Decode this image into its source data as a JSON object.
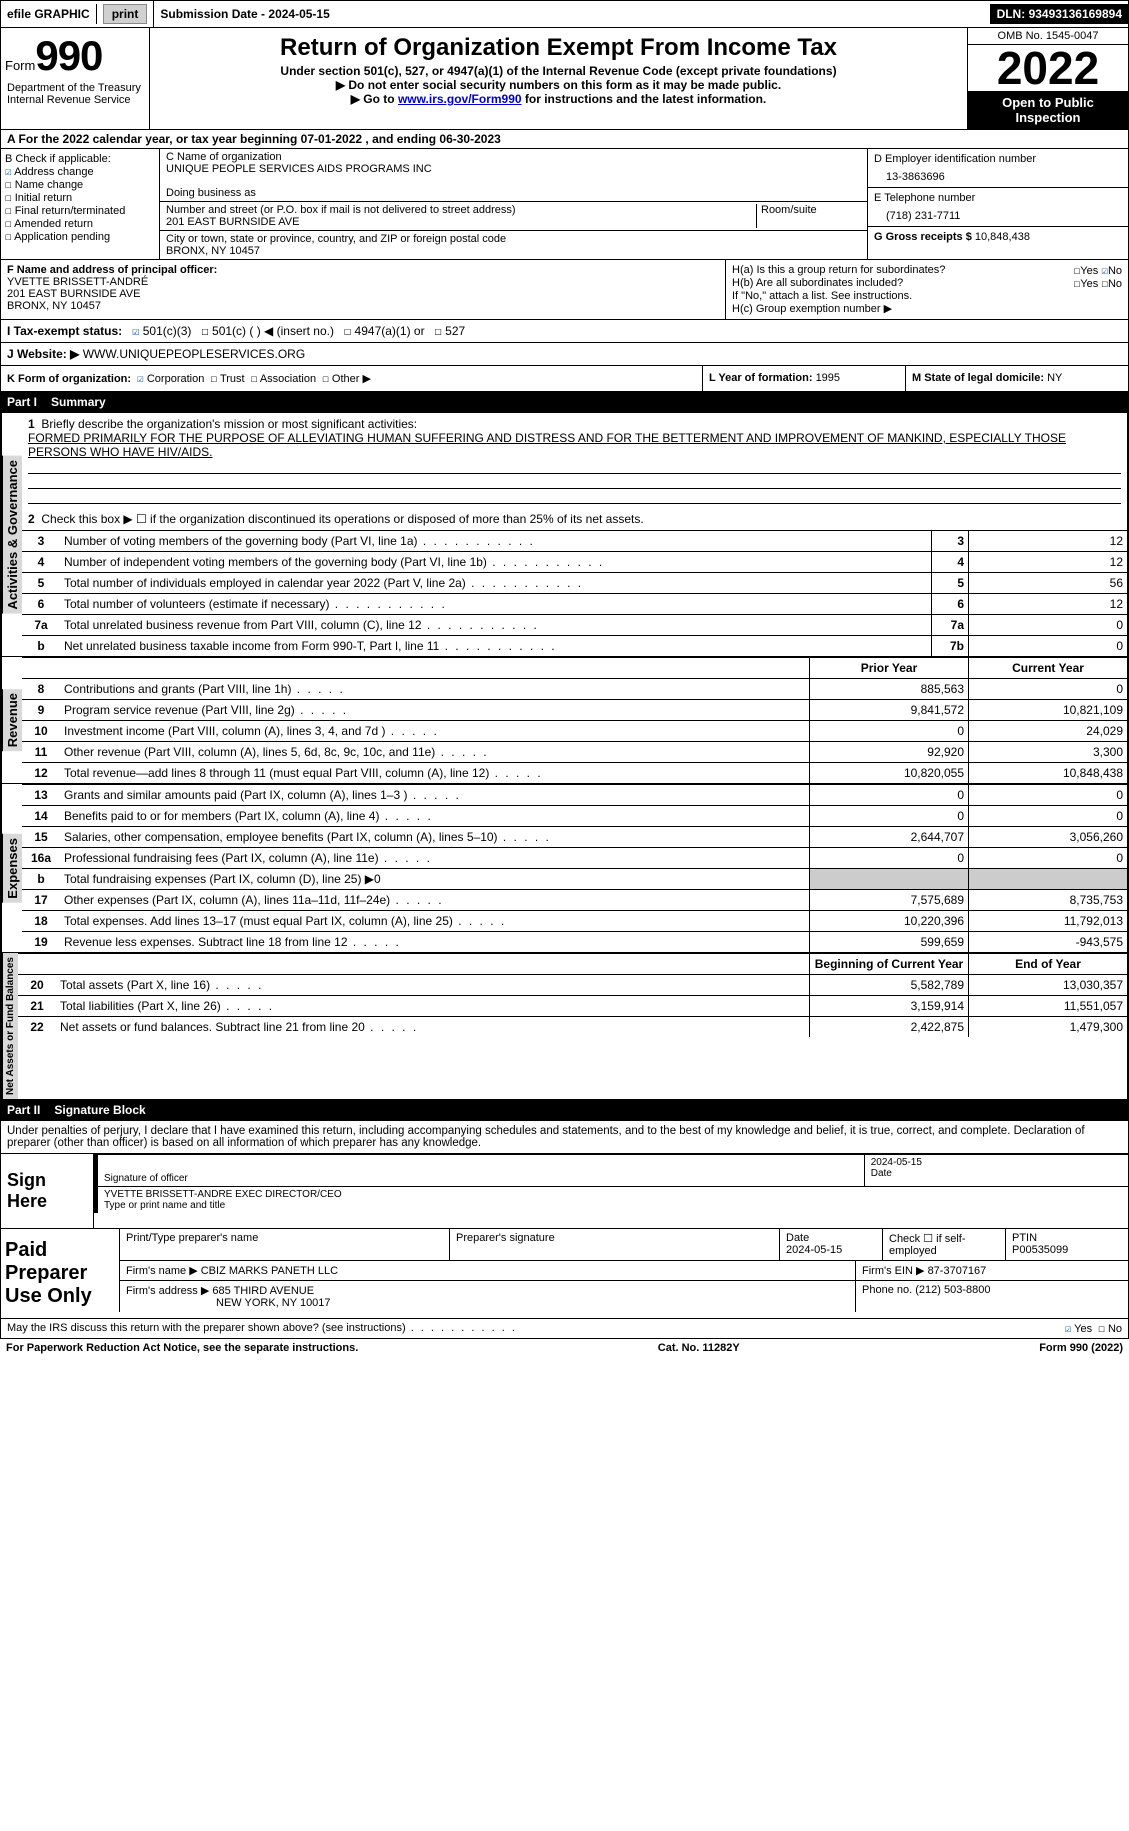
{
  "topbar": {
    "efile": "efile GRAPHIC",
    "print": "print",
    "sub_label": "Submission Date - ",
    "sub_date": "2024-05-15",
    "dln_label": "DLN: ",
    "dln": "93493136169894"
  },
  "header": {
    "form_word": "Form",
    "form_num": "990",
    "title": "Return of Organization Exempt From Income Tax",
    "subtitle1": "Under section 501(c), 527, or 4947(a)(1) of the Internal Revenue Code (except private foundations)",
    "subtitle2": "▶ Do not enter social security numbers on this form as it may be made public.",
    "subtitle3_pre": "▶ Go to ",
    "subtitle3_link": "www.irs.gov/Form990",
    "subtitle3_post": " for instructions and the latest information.",
    "dept": "Department of the Treasury\nInternal Revenue Service",
    "omb": "OMB No. 1545-0047",
    "year": "2022",
    "open_pub": "Open to Public Inspection"
  },
  "row_a": {
    "label": "A For the 2022 calendar year, or tax year beginning ",
    "begin": "07-01-2022",
    "mid": " , and ending ",
    "end": "06-30-2023"
  },
  "col_b": {
    "header": "B Check if applicable:",
    "items": [
      "Address change",
      "Name change",
      "Initial return",
      "Final return/terminated",
      "Amended return",
      "Application pending"
    ]
  },
  "col_c": {
    "name_label": "C Name of organization",
    "name": "UNIQUE PEOPLE SERVICES AIDS PROGRAMS INC",
    "dba_label": "Doing business as",
    "addr_label": "Number and street (or P.O. box if mail is not delivered to street address)",
    "room_label": "Room/suite",
    "addr": "201 EAST BURNSIDE AVE",
    "city_label": "City or town, state or province, country, and ZIP or foreign postal code",
    "city": "BRONX, NY  10457"
  },
  "col_d": {
    "ein_label": "D Employer identification number",
    "ein": "13-3863696",
    "phone_label": "E Telephone number",
    "phone": "(718) 231-7711",
    "gross_label": "G Gross receipts $ ",
    "gross": "10,848,438"
  },
  "row_f": {
    "label": "F  Name and address of principal officer:",
    "name": "YVETTE BRISSETT-ANDRÉ",
    "addr": "201 EAST BURNSIDE AVE",
    "city": "BRONX, NY  10457"
  },
  "row_h": {
    "ha_label": "H(a)  Is this a group return for subordinates?",
    "hb_label": "H(b)  Are all subordinates included?",
    "hb_note": "If \"No,\" attach a list. See instructions.",
    "hc_label": "H(c)  Group exemption number ▶",
    "yes": "Yes",
    "no": "No"
  },
  "row_i": {
    "label": "I  Tax-exempt status:",
    "opt1": "501(c)(3)",
    "opt2": "501(c) (  ) ◀ (insert no.)",
    "opt3": "4947(a)(1) or",
    "opt4": "527"
  },
  "row_j": {
    "label": "J  Website: ▶",
    "value": " WWW.UNIQUEPEOPLESERVICES.ORG"
  },
  "row_k": {
    "label": "K Form of organization:",
    "corp": "Corporation",
    "trust": "Trust",
    "assoc": "Association",
    "other": "Other ▶",
    "l_label": "L Year of formation: ",
    "l_val": "1995",
    "m_label": "M State of legal domicile: ",
    "m_val": "NY"
  },
  "part1": {
    "num": "Part I",
    "title": "Summary",
    "line1_label": "Briefly describe the organization's mission or most significant activities:",
    "mission": "FORMED PRIMARILY FOR THE PURPOSE OF ALLEVIATING HUMAN SUFFERING AND DISTRESS AND FOR THE BETTERMENT AND IMPROVEMENT OF MANKIND, ESPECIALLY THOSE PERSONS WHO HAVE HIV/AIDS.",
    "line2": "Check this box ▶ ☐ if the organization discontinued its operations or disposed of more than 25% of its net assets.",
    "vert_ag": "Activities & Governance",
    "vert_rev": "Revenue",
    "vert_exp": "Expenses",
    "vert_net": "Net Assets or Fund Balances",
    "rows_ag": [
      {
        "n": "3",
        "label": "Number of voting members of the governing body (Part VI, line 1a)",
        "box": "3",
        "val": "12"
      },
      {
        "n": "4",
        "label": "Number of independent voting members of the governing body (Part VI, line 1b)",
        "box": "4",
        "val": "12"
      },
      {
        "n": "5",
        "label": "Total number of individuals employed in calendar year 2022 (Part V, line 2a)",
        "box": "5",
        "val": "56"
      },
      {
        "n": "6",
        "label": "Total number of volunteers (estimate if necessary)",
        "box": "6",
        "val": "12"
      },
      {
        "n": "7a",
        "label": "Total unrelated business revenue from Part VIII, column (C), line 12",
        "box": "7a",
        "val": "0"
      },
      {
        "n": "b",
        "label": "Net unrelated business taxable income from Form 990-T, Part I, line 11",
        "box": "7b",
        "val": "0"
      }
    ],
    "col_hdr_prior": "Prior Year",
    "col_hdr_curr": "Current Year",
    "rows_rev": [
      {
        "n": "8",
        "label": "Contributions and grants (Part VIII, line 1h)",
        "prior": "885,563",
        "curr": "0"
      },
      {
        "n": "9",
        "label": "Program service revenue (Part VIII, line 2g)",
        "prior": "9,841,572",
        "curr": "10,821,109"
      },
      {
        "n": "10",
        "label": "Investment income (Part VIII, column (A), lines 3, 4, and 7d )",
        "prior": "0",
        "curr": "24,029"
      },
      {
        "n": "11",
        "label": "Other revenue (Part VIII, column (A), lines 5, 6d, 8c, 9c, 10c, and 11e)",
        "prior": "92,920",
        "curr": "3,300"
      },
      {
        "n": "12",
        "label": "Total revenue—add lines 8 through 11 (must equal Part VIII, column (A), line 12)",
        "prior": "10,820,055",
        "curr": "10,848,438"
      }
    ],
    "rows_exp": [
      {
        "n": "13",
        "label": "Grants and similar amounts paid (Part IX, column (A), lines 1–3 )",
        "prior": "0",
        "curr": "0"
      },
      {
        "n": "14",
        "label": "Benefits paid to or for members (Part IX, column (A), line 4)",
        "prior": "0",
        "curr": "0"
      },
      {
        "n": "15",
        "label": "Salaries, other compensation, employee benefits (Part IX, column (A), lines 5–10)",
        "prior": "2,644,707",
        "curr": "3,056,260"
      },
      {
        "n": "16a",
        "label": "Professional fundraising fees (Part IX, column (A), line 11e)",
        "prior": "0",
        "curr": "0"
      },
      {
        "n": "b",
        "label": "Total fundraising expenses (Part IX, column (D), line 25) ▶0",
        "shaded": true
      },
      {
        "n": "17",
        "label": "Other expenses (Part IX, column (A), lines 11a–11d, 11f–24e)",
        "prior": "7,575,689",
        "curr": "8,735,753"
      },
      {
        "n": "18",
        "label": "Total expenses. Add lines 13–17 (must equal Part IX, column (A), line 25)",
        "prior": "10,220,396",
        "curr": "11,792,013"
      },
      {
        "n": "19",
        "label": "Revenue less expenses. Subtract line 18 from line 12",
        "prior": "599,659",
        "curr": "-943,575"
      }
    ],
    "col_hdr_beg": "Beginning of Current Year",
    "col_hdr_end": "End of Year",
    "rows_net": [
      {
        "n": "20",
        "label": "Total assets (Part X, line 16)",
        "prior": "5,582,789",
        "curr": "13,030,357"
      },
      {
        "n": "21",
        "label": "Total liabilities (Part X, line 26)",
        "prior": "3,159,914",
        "curr": "11,551,057"
      },
      {
        "n": "22",
        "label": "Net assets or fund balances. Subtract line 21 from line 20",
        "prior": "2,422,875",
        "curr": "1,479,300"
      }
    ]
  },
  "part2": {
    "num": "Part II",
    "title": "Signature Block",
    "decl": "Under penalties of perjury, I declare that I have examined this return, including accompanying schedules and statements, and to the best of my knowledge and belief, it is true, correct, and complete. Declaration of preparer (other than officer) is based on all information of which preparer has any knowledge.",
    "sign_here": "Sign Here",
    "sig_officer": "Signature of officer",
    "sig_date_val": "2024-05-15",
    "date_label": "Date",
    "name_title": "YVETTE BRISSETT-ANDRE  EXEC DIRECTOR/CEO",
    "type_name": "Type or print name and title",
    "paid_prep": "Paid Preparer Use Only",
    "print_name_label": "Print/Type preparer's name",
    "prep_sig_label": "Preparer's signature",
    "date2_label": "Date",
    "date2_val": "2024-05-15",
    "check_self": "Check ☐ if self-employed",
    "ptin_label": "PTIN",
    "ptin": "P00535099",
    "firm_name_label": "Firm's name    ▶ ",
    "firm_name": "CBIZ MARKS PANETH LLC",
    "firm_ein_label": "Firm's EIN ▶ ",
    "firm_ein": "87-3707167",
    "firm_addr_label": "Firm's address ▶ ",
    "firm_addr": "685 THIRD AVENUE",
    "firm_city": "NEW YORK, NY  10017",
    "phone_label": "Phone no. ",
    "phone": "(212) 503-8800",
    "discuss": "May the IRS discuss this return with the preparer shown above? (see instructions)",
    "yes": "Yes",
    "no": "No"
  },
  "footer": {
    "pra": "For Paperwork Reduction Act Notice, see the separate instructions.",
    "cat": "Cat. No. 11282Y",
    "form": "Form 990 (2022)"
  },
  "colors": {
    "link": "#0000cc",
    "check": "#1a5aa0",
    "shade": "#cccccc",
    "vert_bg": "#d8d8d8"
  }
}
